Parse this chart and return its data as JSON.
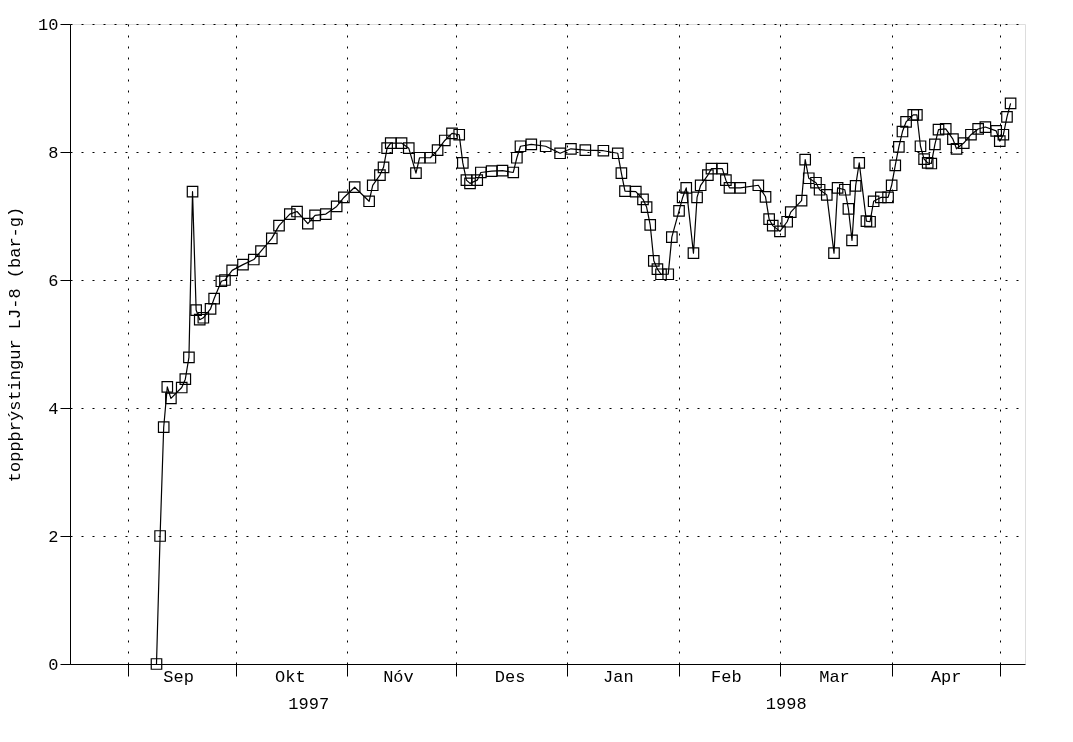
{
  "chart_data": {
    "type": "line",
    "ylabel": "toppþrýstingur LJ-8 (bar-g)",
    "x": [
      "1997-09-09",
      "1997-09-10",
      "1997-09-11",
      "1997-09-12",
      "1997-09-13",
      "1997-09-16",
      "1997-09-17",
      "1997-09-18",
      "1997-09-19",
      "1997-09-20",
      "1997-09-21",
      "1997-09-22",
      "1997-09-24",
      "1997-09-25",
      "1997-09-27",
      "1997-09-28",
      "1997-09-30",
      "1997-10-03",
      "1997-10-06",
      "1997-10-08",
      "1997-10-11",
      "1997-10-13",
      "1997-10-16",
      "1997-10-18",
      "1997-10-21",
      "1997-10-23",
      "1997-10-26",
      "1997-10-29",
      "1997-10-31",
      "1997-11-03",
      "1997-11-07",
      "1997-11-08",
      "1997-11-10",
      "1997-11-11",
      "1997-11-12",
      "1997-11-13",
      "1997-11-16",
      "1997-11-18",
      "1997-11-20",
      "1997-11-21",
      "1997-11-24",
      "1997-11-26",
      "1997-11-28",
      "1997-11-30",
      "1997-12-02",
      "1997-12-03",
      "1997-12-04",
      "1997-12-05",
      "1997-12-07",
      "1997-12-08",
      "1997-12-11",
      "1997-12-14",
      "1997-12-17",
      "1997-12-18",
      "1997-12-19",
      "1997-12-22",
      "1997-12-26",
      "1997-12-30",
      "1998-01-02",
      "1998-01-06",
      "1998-01-11",
      "1998-01-15",
      "1998-01-16",
      "1998-01-17",
      "1998-01-20",
      "1998-01-22",
      "1998-01-23",
      "1998-01-24",
      "1998-01-25",
      "1998-01-26",
      "1998-01-27",
      "1998-01-29",
      "1998-01-30",
      "1998-02-01",
      "1998-02-02",
      "1998-02-03",
      "1998-02-05",
      "1998-02-06",
      "1998-02-07",
      "1998-02-09",
      "1998-02-10",
      "1998-02-13",
      "1998-02-14",
      "1998-02-15",
      "1998-02-18",
      "1998-02-23",
      "1998-02-25",
      "1998-02-26",
      "1998-02-27",
      "1998-03-01",
      "1998-03-03",
      "1998-03-04",
      "1998-03-07",
      "1998-03-08",
      "1998-03-09",
      "1998-03-11",
      "1998-03-12",
      "1998-03-14",
      "1998-03-16",
      "1998-03-17",
      "1998-03-19",
      "1998-03-20",
      "1998-03-21",
      "1998-03-22",
      "1998-03-23",
      "1998-03-25",
      "1998-03-26",
      "1998-03-27",
      "1998-03-29",
      "1998-03-31",
      "1998-04-01",
      "1998-04-02",
      "1998-04-03",
      "1998-04-04",
      "1998-04-05",
      "1998-04-07",
      "1998-04-08",
      "1998-04-09",
      "1998-04-10",
      "1998-04-11",
      "1998-04-12",
      "1998-04-13",
      "1998-04-14",
      "1998-04-16",
      "1998-04-18",
      "1998-04-19",
      "1998-04-21",
      "1998-04-23",
      "1998-04-25",
      "1998-04-27",
      "1998-04-30",
      "1998-05-01",
      "1998-05-02",
      "1998-05-03",
      "1998-05-04"
    ],
    "series": [
      {
        "color": "#000000",
        "values": [
          0.0,
          2.0,
          3.7,
          4.33,
          4.15,
          4.32,
          4.45,
          4.79,
          7.38,
          5.53,
          5.38,
          5.41,
          5.55,
          5.71,
          5.98,
          6.0,
          6.15,
          6.24,
          6.32,
          6.45,
          6.65,
          6.85,
          7.03,
          7.07,
          6.88,
          7.01,
          7.03,
          7.15,
          7.29,
          7.45,
          7.23,
          7.48,
          7.64,
          7.76,
          8.06,
          8.14,
          8.14,
          8.06,
          7.67,
          7.91,
          7.91,
          8.03,
          8.18,
          8.29,
          8.27,
          7.83,
          7.56,
          7.51,
          7.56,
          7.68,
          7.7,
          7.71,
          7.68,
          7.91,
          8.09,
          8.12,
          8.09,
          7.98,
          8.05,
          8.03,
          8.02,
          7.98,
          7.67,
          7.39,
          7.38,
          7.26,
          7.14,
          6.86,
          6.3,
          6.17,
          6.09,
          6.09,
          6.67,
          7.08,
          7.29,
          7.44,
          6.42,
          7.29,
          7.48,
          7.64,
          7.74,
          7.74,
          7.56,
          7.44,
          7.44,
          7.48,
          7.3,
          6.95,
          6.85,
          6.76,
          6.91,
          7.06,
          7.24,
          7.88,
          7.59,
          7.52,
          7.41,
          7.33,
          6.42,
          7.44,
          7.41,
          7.11,
          6.62,
          7.47,
          7.83,
          6.92,
          6.91,
          7.23,
          7.29,
          7.29,
          7.48,
          7.79,
          8.08,
          8.32,
          8.47,
          8.58,
          8.58,
          8.09,
          7.89,
          7.83,
          7.82,
          8.12,
          8.35,
          8.36,
          8.2,
          8.05,
          8.14,
          8.27,
          8.36,
          8.39,
          8.33,
          8.17,
          8.27,
          8.55,
          8.76
        ]
      }
    ],
    "marker": "square",
    "line_style": "solid",
    "grid": true,
    "xlim": [
      "1997-08-16",
      "1998-05-08"
    ],
    "xticks": [
      {
        "value": "1997-09-01",
        "label": null
      },
      {
        "value": "1997-10-01",
        "label": null
      },
      {
        "value": "1997-11-01",
        "label": null
      },
      {
        "value": "1997-12-01",
        "label": null
      },
      {
        "value": "1998-01-01",
        "label": null
      },
      {
        "value": "1998-02-01",
        "label": null
      },
      {
        "value": "1998-03-01",
        "label": null
      },
      {
        "value": "1998-04-01",
        "label": null
      },
      {
        "value": "1998-05-01",
        "label": null
      },
      {
        "value": "1997-09-15",
        "label": "Sep"
      },
      {
        "value": "1997-10-16",
        "label": "Okt"
      },
      {
        "value": "1997-11-15",
        "label": "Nóv"
      },
      {
        "value": "1997-12-16",
        "label": "Des"
      },
      {
        "value": "1998-01-15",
        "label": "Jan"
      },
      {
        "value": "1998-02-14",
        "label": "Feb"
      },
      {
        "value": "1998-03-16",
        "label": "Mar"
      },
      {
        "value": "1998-04-16",
        "label": "Apr"
      }
    ],
    "ylim": [
      0,
      10
    ],
    "yticks": [
      0,
      2,
      4,
      6,
      8,
      10
    ],
    "annotations": [
      "1997",
      "1998"
    ]
  }
}
